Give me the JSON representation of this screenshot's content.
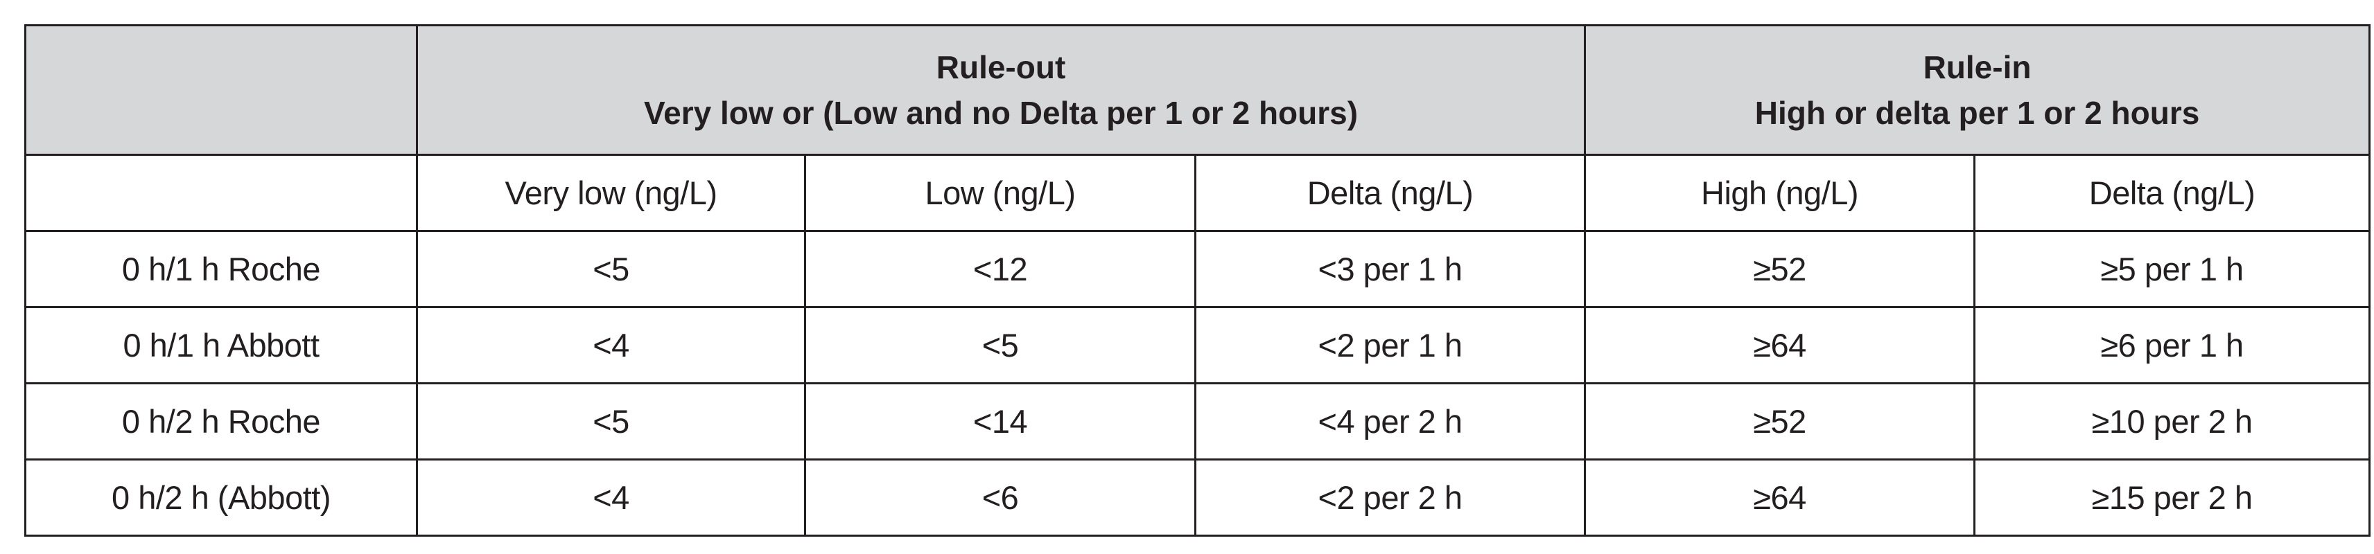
{
  "table": {
    "groups": {
      "rule_out": {
        "title": "Rule-out",
        "subtitle": "Very low or (Low and no Delta per 1 or 2 hours)"
      },
      "rule_in": {
        "title": "Rule-in",
        "subtitle": "High or delta per 1 or 2 hours"
      }
    },
    "column_headers": [
      "",
      "Very low (ng/L)",
      "Low (ng/L)",
      "Delta (ng/L)",
      "High (ng/L)",
      "Delta (ng/L)"
    ],
    "rows": [
      [
        "0 h/1 h Roche",
        "<5",
        "<12",
        "<3 per 1 h",
        "≥52",
        "≥5 per 1 h"
      ],
      [
        "0 h/1 h Abbott",
        "<4",
        "<5",
        "<2 per 1 h",
        "≥64",
        "≥6 per 1 h"
      ],
      [
        "0 h/2 h Roche",
        "<5",
        "<14",
        "<4 per 2 h",
        "≥52",
        "≥10 per 2 h"
      ],
      [
        "0 h/2 h (Abbott)",
        "<4",
        "<6",
        "<2 per 2 h",
        "≥64",
        "≥15 per 2 h"
      ]
    ]
  }
}
